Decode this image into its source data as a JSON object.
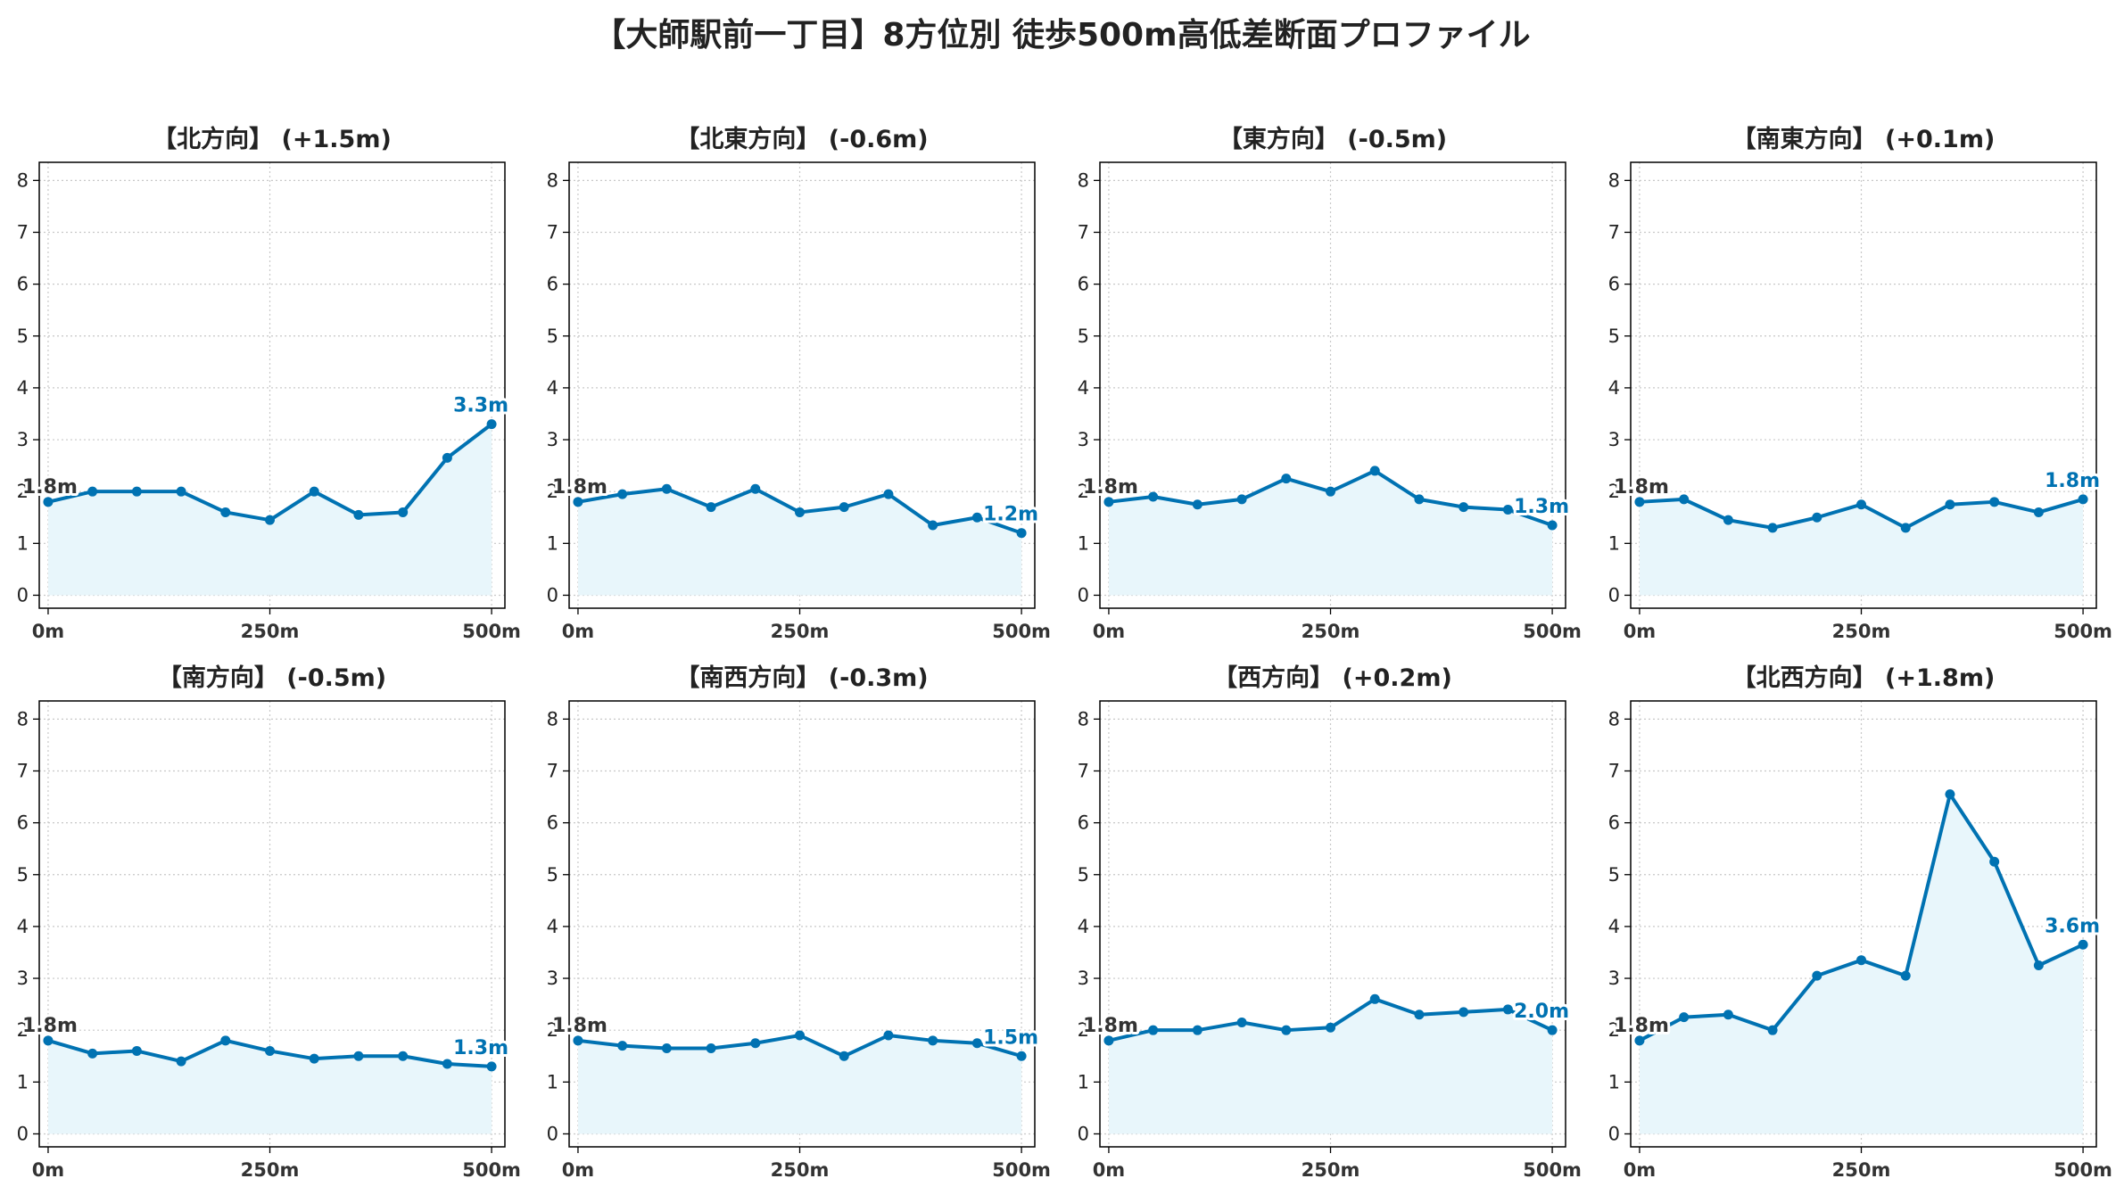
{
  "title": "【大師駅前一丁目】8方位別 徒歩500m高低差断面プロファイル",
  "colors": {
    "line": "#0072b2",
    "fill": "#e8f6fb",
    "grid": "#c8c8c8",
    "start_label": "#333333"
  },
  "chart_data": [
    {
      "type": "area",
      "title": "【北方向】 (+1.5m)",
      "x": [
        0,
        50,
        100,
        150,
        200,
        250,
        300,
        350,
        400,
        450,
        500
      ],
      "values": [
        1.8,
        2.0,
        2.0,
        2.0,
        1.6,
        1.45,
        2.0,
        1.55,
        1.6,
        2.65,
        3.3
      ],
      "start_label": "1.8m",
      "end_label": "3.3m",
      "xticks": [
        "0m",
        "250m",
        "500m"
      ],
      "yticks": [
        "0",
        "1",
        "2",
        "3",
        "4",
        "5",
        "6",
        "7",
        "8"
      ],
      "ylim": [
        -0.25,
        8.35
      ],
      "xlim": [
        -10,
        515
      ],
      "grid": true
    },
    {
      "type": "area",
      "title": "【北東方向】 (-0.6m)",
      "x": [
        0,
        50,
        100,
        150,
        200,
        250,
        300,
        350,
        400,
        450,
        500
      ],
      "values": [
        1.8,
        1.95,
        2.05,
        1.7,
        2.05,
        1.6,
        1.7,
        1.95,
        1.35,
        1.5,
        1.2
      ],
      "start_label": "1.8m",
      "end_label": "1.2m",
      "xticks": [
        "0m",
        "250m",
        "500m"
      ],
      "yticks": [
        "0",
        "1",
        "2",
        "3",
        "4",
        "5",
        "6",
        "7",
        "8"
      ],
      "ylim": [
        -0.25,
        8.35
      ],
      "xlim": [
        -10,
        515
      ],
      "grid": true
    },
    {
      "type": "area",
      "title": "【東方向】 (-0.5m)",
      "x": [
        0,
        50,
        100,
        150,
        200,
        250,
        300,
        350,
        400,
        450,
        500
      ],
      "values": [
        1.8,
        1.9,
        1.75,
        1.85,
        2.25,
        2.0,
        2.4,
        1.85,
        1.7,
        1.65,
        1.35
      ],
      "start_label": "1.8m",
      "end_label": "1.3m",
      "xticks": [
        "0m",
        "250m",
        "500m"
      ],
      "yticks": [
        "0",
        "1",
        "2",
        "3",
        "4",
        "5",
        "6",
        "7",
        "8"
      ],
      "ylim": [
        -0.25,
        8.35
      ],
      "xlim": [
        -10,
        515
      ],
      "grid": true
    },
    {
      "type": "area",
      "title": "【南東方向】 (+0.1m)",
      "x": [
        0,
        50,
        100,
        150,
        200,
        250,
        300,
        350,
        400,
        450,
        500
      ],
      "values": [
        1.8,
        1.85,
        1.45,
        1.3,
        1.5,
        1.75,
        1.3,
        1.75,
        1.8,
        1.6,
        1.85
      ],
      "start_label": "1.8m",
      "end_label": "1.8m",
      "xticks": [
        "0m",
        "250m",
        "500m"
      ],
      "yticks": [
        "0",
        "1",
        "2",
        "3",
        "4",
        "5",
        "6",
        "7",
        "8"
      ],
      "ylim": [
        -0.25,
        8.35
      ],
      "xlim": [
        -10,
        515
      ],
      "grid": true
    },
    {
      "type": "area",
      "title": "【南方向】 (-0.5m)",
      "x": [
        0,
        50,
        100,
        150,
        200,
        250,
        300,
        350,
        400,
        450,
        500
      ],
      "values": [
        1.8,
        1.55,
        1.6,
        1.4,
        1.8,
        1.6,
        1.45,
        1.5,
        1.5,
        1.35,
        1.3
      ],
      "start_label": "1.8m",
      "end_label": "1.3m",
      "xticks": [
        "0m",
        "250m",
        "500m"
      ],
      "yticks": [
        "0",
        "1",
        "2",
        "3",
        "4",
        "5",
        "6",
        "7",
        "8"
      ],
      "ylim": [
        -0.25,
        8.35
      ],
      "xlim": [
        -10,
        515
      ],
      "grid": true
    },
    {
      "type": "area",
      "title": "【南西方向】 (-0.3m)",
      "x": [
        0,
        50,
        100,
        150,
        200,
        250,
        300,
        350,
        400,
        450,
        500
      ],
      "values": [
        1.8,
        1.7,
        1.65,
        1.65,
        1.75,
        1.9,
        1.5,
        1.9,
        1.8,
        1.75,
        1.5
      ],
      "start_label": "1.8m",
      "end_label": "1.5m",
      "xticks": [
        "0m",
        "250m",
        "500m"
      ],
      "yticks": [
        "0",
        "1",
        "2",
        "3",
        "4",
        "5",
        "6",
        "7",
        "8"
      ],
      "ylim": [
        -0.25,
        8.35
      ],
      "xlim": [
        -10,
        515
      ],
      "grid": true
    },
    {
      "type": "area",
      "title": "【西方向】 (+0.2m)",
      "x": [
        0,
        50,
        100,
        150,
        200,
        250,
        300,
        350,
        400,
        450,
        500
      ],
      "values": [
        1.8,
        2.0,
        2.0,
        2.15,
        2.0,
        2.05,
        2.6,
        2.3,
        2.35,
        2.4,
        2.0
      ],
      "start_label": "1.8m",
      "end_label": "2.0m",
      "xticks": [
        "0m",
        "250m",
        "500m"
      ],
      "yticks": [
        "0",
        "1",
        "2",
        "3",
        "4",
        "5",
        "6",
        "7",
        "8"
      ],
      "ylim": [
        -0.25,
        8.35
      ],
      "xlim": [
        -10,
        515
      ],
      "grid": true
    },
    {
      "type": "area",
      "title": "【北西方向】 (+1.8m)",
      "x": [
        0,
        50,
        100,
        150,
        200,
        250,
        300,
        350,
        400,
        450,
        500
      ],
      "values": [
        1.8,
        2.25,
        2.3,
        2.0,
        3.05,
        3.35,
        3.05,
        6.55,
        5.25,
        3.25,
        3.65
      ],
      "start_label": "1.8m",
      "end_label": "3.6m",
      "xticks": [
        "0m",
        "250m",
        "500m"
      ],
      "yticks": [
        "0",
        "1",
        "2",
        "3",
        "4",
        "5",
        "6",
        "7",
        "8"
      ],
      "ylim": [
        -0.25,
        8.35
      ],
      "xlim": [
        -10,
        515
      ],
      "grid": true
    }
  ]
}
